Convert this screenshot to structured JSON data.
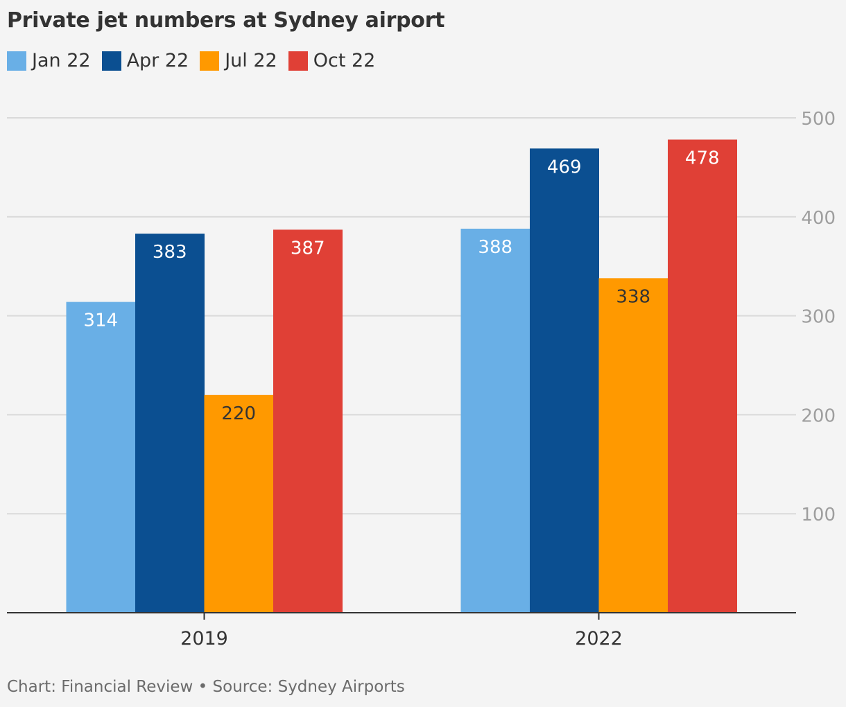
{
  "chart_data": {
    "type": "bar",
    "title": "Private jet numbers at Sydney airport",
    "categories": [
      "2019",
      "2022"
    ],
    "series": [
      {
        "name": "Jan 22",
        "color": "#69afe6",
        "label_color": "#ffffff",
        "values": [
          314,
          388
        ]
      },
      {
        "name": "Apr 22",
        "color": "#0b4f91",
        "label_color": "#ffffff",
        "values": [
          383,
          469
        ]
      },
      {
        "name": "Jul 22",
        "color": "#ff9900",
        "label_color": "#333333",
        "values": [
          220,
          338
        ]
      },
      {
        "name": "Oct 22",
        "color": "#e04036",
        "label_color": "#ffffff",
        "values": [
          387,
          478
        ]
      }
    ],
    "y_ticks": [
      100,
      200,
      300,
      400,
      500
    ],
    "ylim": [
      0,
      500
    ],
    "grid": true,
    "y_axis_side": "right",
    "legend_position": "top-left",
    "data_labels": "inside-top"
  },
  "footer": "Chart: Financial Review • Source: Sydney Airports"
}
